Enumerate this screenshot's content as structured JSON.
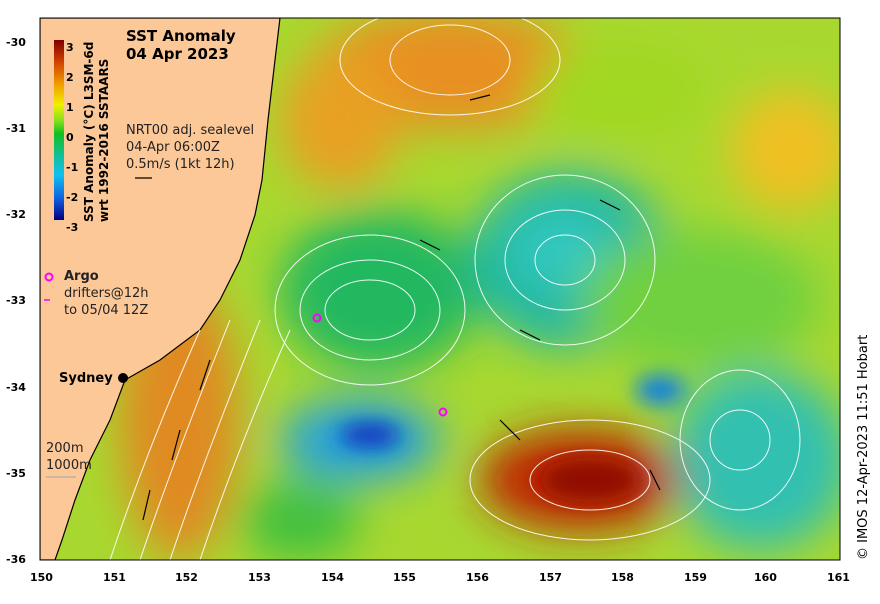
{
  "title": {
    "line1": "SST Anomaly",
    "line2": "04 Apr 2023"
  },
  "colorbar": {
    "label_line1": "SST Anomaly (°C) L3SM-6d",
    "label_line2": "wrt 1992-2016 SSTAARS",
    "ticks": [
      "3",
      "2",
      "1",
      "0",
      "-1",
      "-2",
      "-3"
    ],
    "colors": [
      "#7f0000",
      "#d04000",
      "#f0a000",
      "#f0f000",
      "#80e020",
      "#10c020",
      "#10c0a0",
      "#10c0f0",
      "#1060e0",
      "#000080"
    ]
  },
  "currents_legend": {
    "line1": "NRT00 adj. sealevel",
    "line2": "04-Apr 06:00Z",
    "line3": "0.5m/s (1kt 12h)"
  },
  "argo_legend": {
    "label": "Argo",
    "drifters_line1": "drifters@12h",
    "drifters_line2": "to 05/04 12Z",
    "argo_color": "#ff00ff"
  },
  "city": {
    "name": "Sydney"
  },
  "isobaths": {
    "line1": "200m",
    "line2": "1000m"
  },
  "x_axis": {
    "ticks": [
      "150",
      "151",
      "152",
      "153",
      "154",
      "155",
      "156",
      "157",
      "158",
      "159",
      "160",
      "161"
    ]
  },
  "y_axis": {
    "ticks": [
      "-30",
      "-31",
      "-32",
      "-33",
      "-34",
      "-35",
      "-36"
    ]
  },
  "credit": "© IMOS 12-Apr-2023 11:51 Hobart"
}
